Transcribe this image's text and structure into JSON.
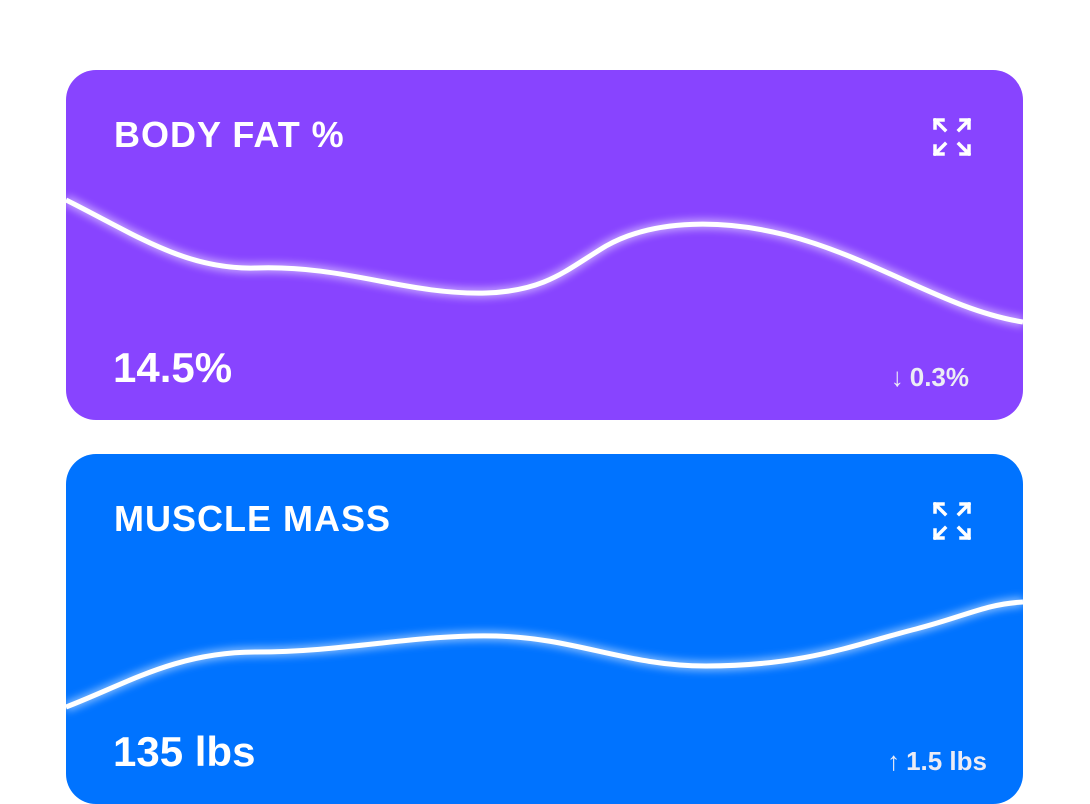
{
  "cards": [
    {
      "title": "BODY FAT %",
      "value": "14.5%",
      "delta": "0.3%",
      "delta_direction": "down",
      "color": "#8844FF",
      "icon": "expand-icon"
    },
    {
      "title": "MUSCLE MASS",
      "value": "135 lbs",
      "delta": "1.5 lbs",
      "delta_direction": "up",
      "color": "#0073FF",
      "icon": "expand-icon"
    }
  ]
}
